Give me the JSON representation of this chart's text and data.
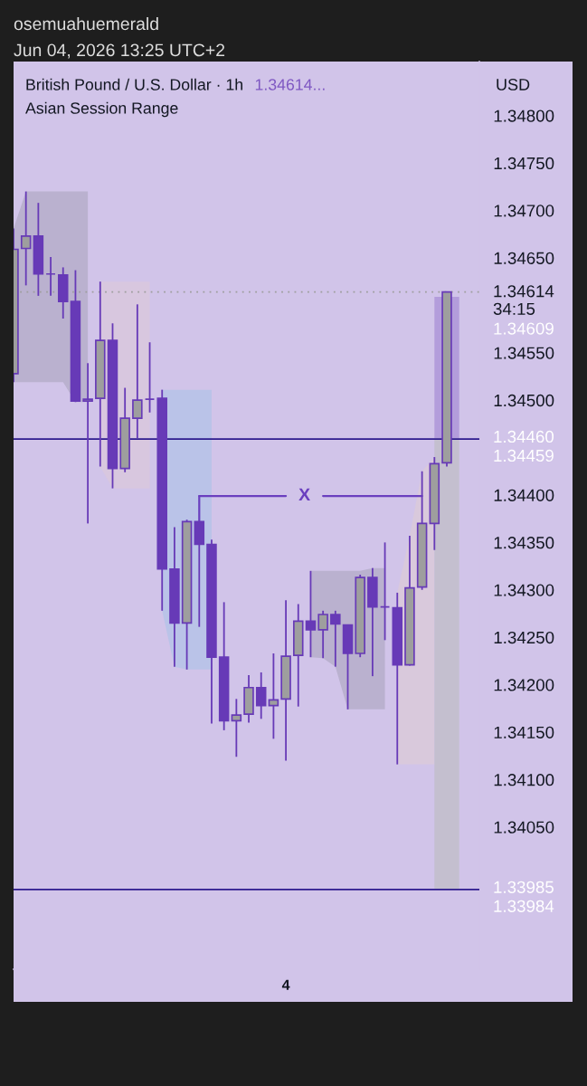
{
  "chart_data": {
    "type": "candlestick",
    "title": "British Pound / U.S. Dollar · 1h",
    "subtitle": "Asian Session Range",
    "ylabel": "USD",
    "categories": [
      null,
      null,
      null,
      null,
      null,
      null,
      null,
      null,
      null,
      null,
      null,
      null,
      null,
      null,
      null,
      null,
      null,
      null,
      null,
      null,
      null,
      null,
      "4",
      null,
      null,
      null,
      null,
      null,
      null,
      null,
      null,
      null,
      null,
      null,
      null,
      null,
      null
    ],
    "ohlc": [
      [
        1.34528,
        1.34681,
        1.34519,
        1.34659
      ],
      [
        1.3466,
        1.3472,
        1.34621,
        1.34673
      ],
      [
        1.34673,
        1.34708,
        1.3461,
        1.34633
      ],
      [
        1.34633,
        1.34651,
        1.3461,
        1.34633
      ],
      [
        1.34632,
        1.3464,
        1.34586,
        1.34604
      ],
      [
        1.34604,
        1.34637,
        1.34498,
        1.34499
      ],
      [
        1.34499,
        1.34539,
        1.3437,
        1.34501
      ],
      [
        1.34502,
        1.34625,
        1.3443,
        1.34563
      ],
      [
        1.34563,
        1.34581,
        1.34407,
        1.34428
      ],
      [
        1.34428,
        1.34513,
        1.34424,
        1.34481
      ],
      [
        1.34481,
        1.34601,
        1.3446,
        1.345
      ],
      [
        1.34501,
        1.34561,
        1.34487,
        1.34501
      ],
      [
        1.34502,
        1.34511,
        1.34278,
        1.34322
      ],
      [
        1.34322,
        1.34366,
        1.34219,
        1.34265
      ],
      [
        1.34265,
        1.34374,
        1.34216,
        1.34372
      ],
      [
        1.34372,
        1.34372,
        1.34261,
        1.34348
      ],
      [
        1.34348,
        1.34353,
        1.34159,
        1.34229
      ],
      [
        1.34229,
        1.34287,
        1.34152,
        1.34162
      ],
      [
        1.34162,
        1.34185,
        1.34124,
        1.34168
      ],
      [
        1.34169,
        1.3421,
        1.3416,
        1.34197
      ],
      [
        1.34197,
        1.34213,
        1.34164,
        1.34178
      ],
      [
        1.34178,
        1.34233,
        1.34143,
        1.34184
      ],
      [
        1.34185,
        1.34289,
        1.3412,
        1.3423
      ],
      [
        1.34231,
        1.34285,
        1.34177,
        1.34267
      ],
      [
        1.34267,
        1.3432,
        1.34229,
        1.34258
      ],
      [
        1.34258,
        1.34278,
        1.34228,
        1.34274
      ],
      [
        1.34274,
        1.34278,
        1.34219,
        1.34264
      ],
      [
        1.34263,
        1.34263,
        1.34174,
        1.34233
      ],
      [
        1.34233,
        1.34316,
        1.34229,
        1.34313
      ],
      [
        1.34313,
        1.34323,
        1.34209,
        1.34282
      ],
      [
        1.34282,
        1.3435,
        1.34247,
        1.34282
      ],
      [
        1.34281,
        1.34297,
        1.34116,
        1.34221
      ],
      [
        1.34221,
        1.34357,
        1.3422,
        1.34302
      ],
      [
        1.34303,
        1.34425,
        1.343,
        1.3437
      ],
      [
        1.3437,
        1.3444,
        1.34342,
        1.34433
      ],
      [
        1.34434,
        1.34614,
        1.3443,
        1.34614
      ],
      null
    ],
    "color": "#673ab7",
    "colors": [
      "#9e9e9e",
      "#9e9e9e",
      "#673ab7",
      "#673ab7",
      "#673ab7",
      "#673ab7",
      "#9e9e9e",
      "#9e9e9e",
      "#673ab7",
      "#9e9e9e",
      "#9e9e9e",
      "#673ab7",
      "#673ab7",
      "#673ab7",
      "#9e9e9e",
      "#673ab7",
      "#673ab7",
      "#673ab7",
      "#9e9e9e",
      "#9e9e9e",
      "#673ab7",
      "#9e9e9e",
      "#9e9e9e",
      "#9e9e9e",
      "#673ab7",
      "#9e9e9e",
      "#673ab7",
      "#673ab7",
      "#9e9e9e",
      "#673ab7",
      "#673ab7",
      "#673ab7",
      "#9e9e9e",
      "#9e9e9e",
      "#9e9e9e",
      "#9e9e9e",
      null
    ],
    "series": [
      {
        "type": "area",
        "color": "#bab1cf",
        "values": [
          null,
          null,
          null,
          null,
          null,
          null,
          null,
          null,
          null,
          null,
          null,
          null,
          null,
          null,
          null,
          null,
          null,
          null,
          null,
          null,
          null,
          null,
          null,
          null,
          null,
          null,
          null,
          null,
          null,
          null,
          null,
          null,
          null,
          null,
          null,
          null,
          null
        ],
        "lower": [
          1.34519,
          1.34519,
          1.34519,
          1.34519,
          1.34519,
          1.34498,
          1.34498,
          null,
          null,
          null,
          null,
          null,
          null,
          null,
          null,
          null,
          null,
          null,
          null,
          null,
          null,
          null,
          null,
          null,
          null,
          null,
          null,
          null,
          null,
          null,
          null,
          null,
          null,
          null,
          null,
          null,
          null
        ],
        "upper": [
          1.34681,
          1.3472,
          1.3472,
          1.3472,
          1.3472,
          1.3472,
          1.3472,
          null,
          null,
          null,
          null,
          null,
          null,
          null,
          null,
          null,
          null,
          null,
          null,
          null,
          null,
          null,
          null,
          null,
          null,
          null,
          null,
          null,
          null,
          null,
          null,
          null,
          null,
          null,
          null,
          null,
          null
        ]
      },
      {
        "type": "area",
        "color": "#d8c7df",
        "values": [
          null,
          null,
          null,
          null,
          null,
          null,
          null,
          null,
          null,
          null,
          null,
          null,
          null,
          null,
          null,
          null,
          null,
          null,
          null,
          null,
          null,
          null,
          null,
          null,
          null,
          null,
          null,
          null,
          null,
          null,
          null,
          null,
          null,
          null,
          null,
          null,
          null
        ],
        "lower": [
          null,
          null,
          null,
          null,
          null,
          null,
          null,
          1.3443,
          1.34407,
          1.34407,
          1.34407,
          1.34407,
          null,
          null,
          null,
          null,
          null,
          null,
          null,
          null,
          null,
          null,
          null,
          null,
          null,
          null,
          null,
          null,
          null,
          null,
          null,
          null,
          null,
          null,
          null,
          null,
          null
        ],
        "upper": [
          null,
          null,
          null,
          null,
          null,
          null,
          null,
          1.34625,
          1.34625,
          1.34625,
          1.34625,
          1.34625,
          null,
          null,
          null,
          null,
          null,
          null,
          null,
          null,
          null,
          null,
          null,
          null,
          null,
          null,
          null,
          null,
          null,
          null,
          null,
          null,
          null,
          null,
          null,
          null,
          null
        ]
      },
      {
        "type": "area",
        "color": "#bac3e8",
        "values": [
          null,
          null,
          null,
          null,
          null,
          null,
          null,
          null,
          null,
          null,
          null,
          null,
          null,
          null,
          null,
          null,
          null,
          null,
          null,
          null,
          null,
          null,
          null,
          null,
          null,
          null,
          null,
          null,
          null,
          null,
          null,
          null,
          null,
          null,
          null,
          null,
          null
        ],
        "lower": [
          null,
          null,
          null,
          null,
          null,
          null,
          null,
          null,
          null,
          null,
          null,
          null,
          1.34278,
          1.34219,
          1.34216,
          1.34216,
          1.34216,
          null,
          null,
          null,
          null,
          null,
          null,
          null,
          null,
          null,
          null,
          null,
          null,
          null,
          null,
          null,
          null,
          null,
          null,
          null,
          null
        ],
        "upper": [
          null,
          null,
          null,
          null,
          null,
          null,
          null,
          null,
          null,
          null,
          null,
          null,
          1.34511,
          1.34511,
          1.34511,
          1.34511,
          1.34511,
          null,
          null,
          null,
          null,
          null,
          null,
          null,
          null,
          null,
          null,
          null,
          null,
          null,
          null,
          null,
          null,
          null,
          null,
          null,
          null
        ]
      },
      {
        "type": "area",
        "color": "#bab1cf",
        "values": [
          null,
          null,
          null,
          null,
          null,
          null,
          null,
          null,
          null,
          null,
          null,
          null,
          null,
          null,
          null,
          null,
          null,
          null,
          null,
          null,
          null,
          null,
          null,
          null,
          null,
          null,
          null,
          null,
          null,
          null,
          null,
          null,
          null,
          null,
          null,
          null,
          null
        ],
        "lower": [
          null,
          null,
          null,
          null,
          null,
          null,
          null,
          null,
          null,
          null,
          null,
          null,
          null,
          null,
          null,
          null,
          null,
          null,
          null,
          null,
          null,
          null,
          null,
          null,
          1.34229,
          1.34228,
          1.34219,
          1.34174,
          1.34174,
          1.34174,
          1.34174,
          null,
          null,
          null,
          null,
          null,
          null
        ],
        "upper": [
          null,
          null,
          null,
          null,
          null,
          null,
          null,
          null,
          null,
          null,
          null,
          null,
          null,
          null,
          null,
          null,
          null,
          null,
          null,
          null,
          null,
          null,
          null,
          null,
          1.3432,
          1.3432,
          1.3432,
          1.3432,
          1.3432,
          1.34323,
          1.34323,
          null,
          null,
          null,
          null,
          null,
          null
        ]
      },
      {
        "type": "area",
        "color": "#d9c9dc",
        "values": [
          null,
          null,
          null,
          null,
          null,
          null,
          null,
          null,
          null,
          null,
          null,
          null,
          null,
          null,
          null,
          null,
          null,
          null,
          null,
          null,
          null,
          null,
          null,
          null,
          null,
          null,
          null,
          null,
          null,
          null,
          null,
          null,
          null,
          null,
          null,
          null,
          null
        ],
        "lower": [
          null,
          null,
          null,
          null,
          null,
          null,
          null,
          null,
          null,
          null,
          null,
          null,
          null,
          null,
          null,
          null,
          null,
          null,
          null,
          null,
          null,
          null,
          null,
          null,
          null,
          null,
          null,
          null,
          null,
          null,
          null,
          1.34116,
          1.34116,
          1.34116,
          1.34116,
          null,
          null
        ],
        "upper": [
          null,
          null,
          null,
          null,
          null,
          null,
          null,
          null,
          null,
          null,
          null,
          null,
          null,
          null,
          null,
          null,
          null,
          null,
          null,
          null,
          null,
          null,
          null,
          null,
          null,
          null,
          null,
          null,
          null,
          null,
          null,
          1.34297,
          1.34357,
          1.34425,
          1.3444,
          null,
          null
        ]
      },
      {
        "type": "area",
        "color": "#b39ddb",
        "values": [
          null,
          null,
          null,
          null,
          null,
          null,
          null,
          null,
          null,
          null,
          null,
          null,
          null,
          null,
          null,
          null,
          null,
          null,
          null,
          null,
          null,
          null,
          null,
          null,
          null,
          null,
          null,
          null,
          null,
          null,
          null,
          null,
          null,
          null,
          null,
          null,
          null
        ],
        "lower": [
          null,
          null,
          null,
          null,
          null,
          null,
          null,
          null,
          null,
          null,
          null,
          null,
          null,
          null,
          null,
          null,
          null,
          null,
          null,
          null,
          null,
          null,
          null,
          null,
          null,
          null,
          null,
          null,
          null,
          null,
          null,
          null,
          null,
          null,
          1.3446,
          1.3446,
          1.3446
        ],
        "upper": [
          null,
          null,
          null,
          null,
          null,
          null,
          null,
          null,
          null,
          null,
          null,
          null,
          null,
          null,
          null,
          null,
          null,
          null,
          null,
          null,
          null,
          null,
          null,
          null,
          null,
          null,
          null,
          null,
          null,
          null,
          null,
          null,
          null,
          null,
          1.34609,
          1.34609,
          1.34609
        ]
      },
      {
        "type": "area",
        "color": "#c4bfcf",
        "values": [
          null,
          null,
          null,
          null,
          null,
          null,
          null,
          null,
          null,
          null,
          null,
          null,
          null,
          null,
          null,
          null,
          null,
          null,
          null,
          null,
          null,
          null,
          null,
          null,
          null,
          null,
          null,
          null,
          null,
          null,
          null,
          null,
          null,
          null,
          null,
          null,
          null
        ],
        "lower": [
          null,
          null,
          null,
          null,
          null,
          null,
          null,
          null,
          null,
          null,
          null,
          null,
          null,
          null,
          null,
          null,
          null,
          null,
          null,
          null,
          null,
          null,
          null,
          null,
          null,
          null,
          null,
          null,
          null,
          null,
          null,
          null,
          null,
          null,
          1.33985,
          1.33985,
          1.33985
        ],
        "upper": [
          null,
          null,
          null,
          null,
          null,
          null,
          null,
          null,
          null,
          null,
          null,
          null,
          null,
          null,
          null,
          null,
          null,
          null,
          null,
          null,
          null,
          null,
          null,
          null,
          null,
          null,
          null,
          null,
          null,
          null,
          null,
          null,
          null,
          null,
          1.3446,
          1.3446,
          1.3446
        ]
      },
      {
        "type": "line",
        "name": "X",
        "color": "#6a3fbf",
        "values": [
          null,
          null,
          null,
          null,
          null,
          null,
          null,
          null,
          null,
          null,
          null,
          null,
          null,
          null,
          null,
          1.34399,
          1.34399,
          1.34399,
          1.34399,
          1.34399,
          1.34399,
          1.34399,
          1.34399,
          null,
          null,
          1.34399,
          1.34399,
          1.34399,
          1.34399,
          1.34399,
          1.34399,
          1.34399,
          1.34399,
          1.34399,
          null,
          null,
          null
        ]
      }
    ],
    "ref_lines": [
      {
        "axis": "y",
        "value": 1.34614,
        "label": "1.34614\n34:15",
        "color": "#9e9e9e",
        "line_style": "dotted"
      },
      {
        "axis": "y",
        "value": 1.34459,
        "label": "1.34459",
        "color": "#2e1b8e"
      },
      {
        "axis": "y",
        "value": 1.33984,
        "label": "1.33984",
        "color": "#2e1b8e"
      }
    ],
    "annotations": [
      "osemuahuemerald",
      "Jun 04, 2026 13:25 UTC+2",
      "1.34614...",
      "1.34609",
      "1.34460",
      "1.33985"
    ],
    "ylim": [
      1.339,
      1.34857
    ],
    "yticks": [
      {
        "value": 1.348,
        "label": "1.34800"
      },
      {
        "value": 1.3475,
        "label": "1.34750"
      },
      {
        "value": 1.347,
        "label": "1.34700"
      },
      {
        "value": 1.3465,
        "label": "1.34650"
      },
      {
        "value": 1.3455,
        "label": "1.34550"
      },
      {
        "value": 1.345,
        "label": "1.34500"
      },
      {
        "value": 1.344,
        "label": "1.34400"
      },
      {
        "value": 1.3435,
        "label": "1.34350"
      },
      {
        "value": 1.343,
        "label": "1.34300"
      },
      {
        "value": 1.3425,
        "label": "1.34250"
      },
      {
        "value": 1.342,
        "label": "1.34200"
      },
      {
        "value": 1.3415,
        "label": "1.34150"
      },
      {
        "value": 1.341,
        "label": "1.34100"
      },
      {
        "value": 1.3405,
        "label": "1.34050"
      }
    ]
  }
}
